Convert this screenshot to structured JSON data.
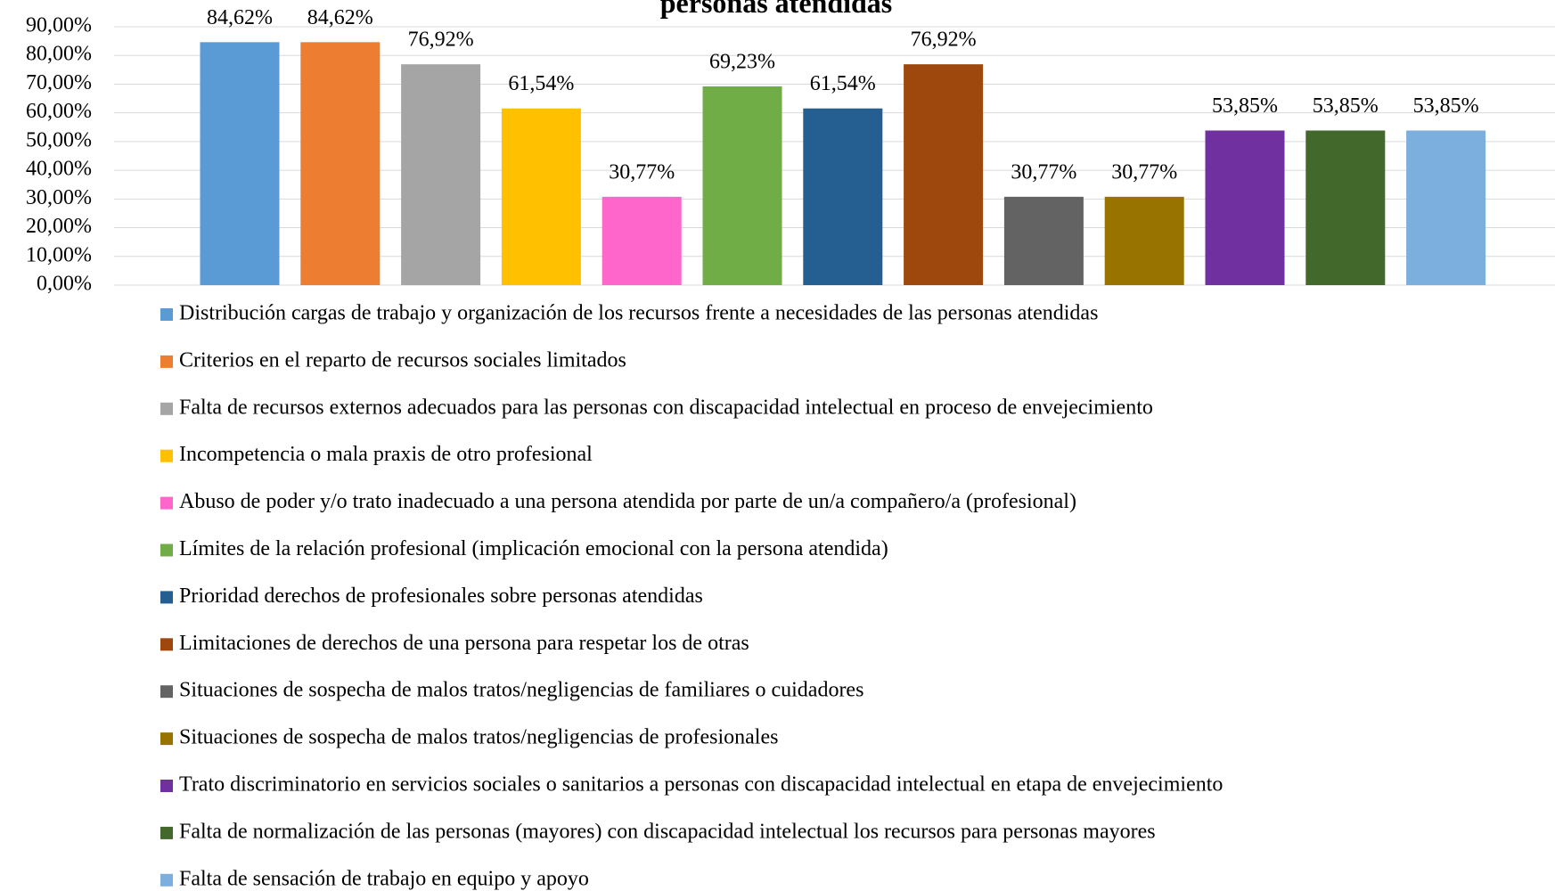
{
  "chart_data": {
    "type": "bar",
    "title": "personas atendidas",
    "series": [
      {
        "name": "Distribución cargas de trabajo y organización de los recursos frente a necesidades de las personas atendidas",
        "color": "#5b9bd5",
        "values": [
          84.62
        ],
        "value_labels": [
          "84,62%"
        ]
      },
      {
        "name": "Criterios en el reparto de recursos sociales limitados",
        "color": "#ed7d31",
        "values": [
          84.62
        ],
        "value_labels": [
          "84,62%"
        ]
      },
      {
        "name": "Falta de recursos externos adecuados para las personas con discapacidad intelectual en proceso de envejecimiento",
        "color": "#a5a5a5",
        "values": [
          76.92
        ],
        "value_labels": [
          "76,92%"
        ]
      },
      {
        "name": "Incompetencia o mala praxis de otro profesional",
        "color": "#ffc000",
        "values": [
          61.54
        ],
        "value_labels": [
          "61,54%"
        ]
      },
      {
        "name": "Abuso de poder y/o trato inadecuado a una persona atendida por parte de un/a compañero/a (profesional)",
        "color": "#ff66cc",
        "values": [
          30.77
        ],
        "value_labels": [
          "30,77%"
        ]
      },
      {
        "name": "Límites de la relación profesional (implicación emocional con la persona atendida)",
        "color": "#70ad47",
        "values": [
          69.23
        ],
        "value_labels": [
          "69,23%"
        ]
      },
      {
        "name": "Prioridad derechos de profesionales sobre personas atendidas",
        "color": "#255e91",
        "values": [
          61.54
        ],
        "value_labels": [
          "61,54%"
        ]
      },
      {
        "name": "Limitaciones de derechos de una persona para respetar los de otras",
        "color": "#9e480e",
        "values": [
          76.92
        ],
        "value_labels": [
          "76,92%"
        ]
      },
      {
        "name": "Situaciones de sospecha de malos tratos/negligencias de familiares o cuidadores",
        "color": "#636363",
        "values": [
          30.77
        ],
        "value_labels": [
          "30,77%"
        ]
      },
      {
        "name": "Situaciones de sospecha de malos tratos/negligencias de profesionales",
        "color": "#997300",
        "values": [
          30.77
        ],
        "value_labels": [
          "30,77%"
        ]
      },
      {
        "name": "Trato discriminatorio en servicios sociales o sanitarios a personas con discapacidad intelectual en etapa de envejecimiento",
        "color": "#7030a0",
        "values": [
          53.85
        ],
        "value_labels": [
          "53,85%"
        ]
      },
      {
        "name": "Falta de normalización de las personas (mayores) con discapacidad intelectual los recursos para personas mayores",
        "color": "#43682b",
        "values": [
          53.85
        ],
        "value_labels": [
          "53,85%"
        ]
      },
      {
        "name": "Falta de sensación de trabajo en equipo y apoyo",
        "color": "#7cafdd",
        "values": [
          53.85
        ],
        "value_labels": [
          "53,85%"
        ]
      }
    ],
    "ylim": [
      0,
      90
    ],
    "yticks": [
      {
        "value": 0,
        "label": "0,00%"
      },
      {
        "value": 10,
        "label": "10,00%"
      },
      {
        "value": 20,
        "label": "20,00%"
      },
      {
        "value": 30,
        "label": "30,00%"
      },
      {
        "value": 40,
        "label": "40,00%"
      },
      {
        "value": 50,
        "label": "50,00%"
      },
      {
        "value": 60,
        "label": "60,00%"
      },
      {
        "value": 70,
        "label": "70,00%"
      },
      {
        "value": 80,
        "label": "80,00%"
      },
      {
        "value": 90,
        "label": "90,00%"
      }
    ],
    "grid": true,
    "legend": "bottom"
  }
}
